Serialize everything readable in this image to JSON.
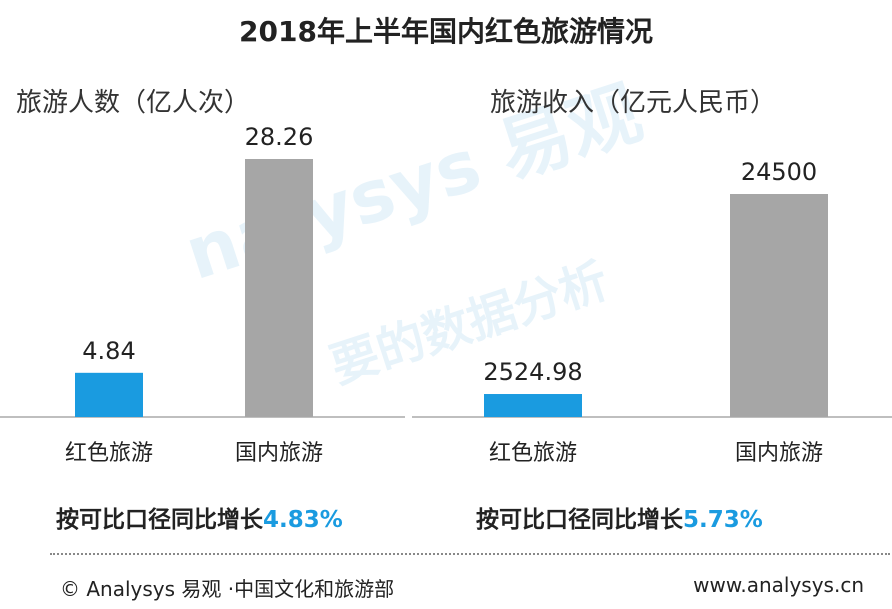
{
  "title": "2018年上半年国内红色旅游情况",
  "watermark": {
    "brand": "nalysys 易观",
    "slogan": "要的数据分析"
  },
  "colors": {
    "red_tourism": "#1a9be0",
    "domestic_tourism": "#a6a6a6",
    "highlight": "#1a9be0"
  },
  "chart_data": [
    {
      "type": "bar",
      "title": "旅游人数（亿人次）",
      "categories": [
        "红色旅游",
        "国内旅游"
      ],
      "values": [
        4.84,
        28.26
      ],
      "value_labels": [
        "4.84",
        "28.26"
      ],
      "growth_prefix": "按可比口径同比增长",
      "growth_value": "4.83%"
    },
    {
      "type": "bar",
      "title": "旅游收入（亿元人民币）",
      "categories": [
        "红色旅游",
        "国内旅游"
      ],
      "values": [
        2524.98,
        24500
      ],
      "value_labels": [
        "2524.98",
        "24500"
      ],
      "growth_prefix": "按可比口径同比增长",
      "growth_value": "5.73%"
    }
  ],
  "footer": {
    "source": "© Analysys 易观 ·中国文化和旅游部",
    "url": "www.analysys.cn"
  }
}
